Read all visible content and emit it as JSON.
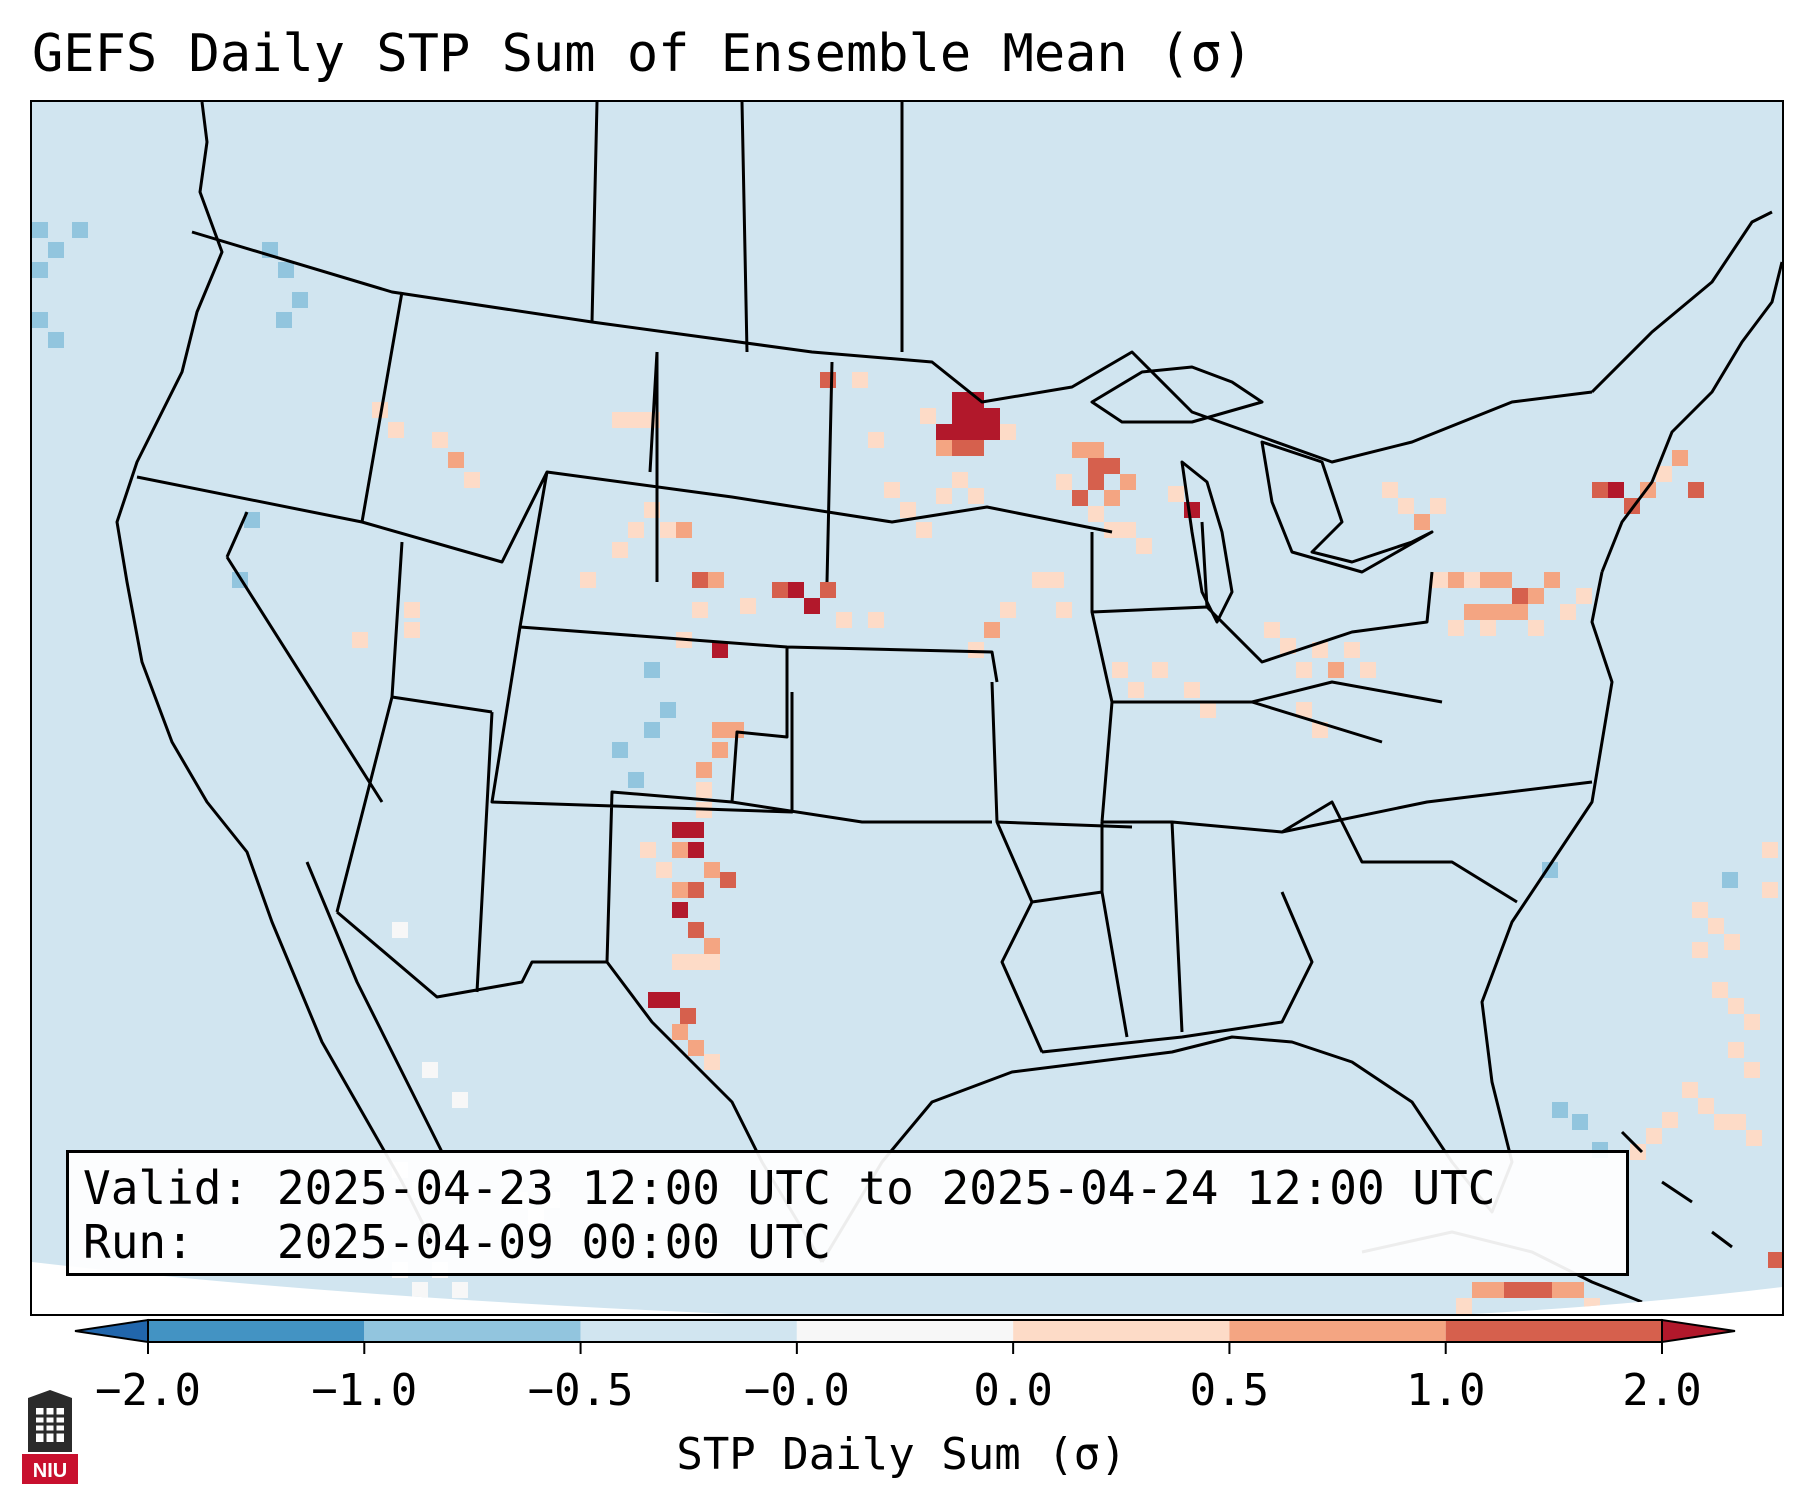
{
  "title": "GEFS Daily STP Sum of Ensemble Mean (σ)",
  "info": {
    "valid_label": "Valid:",
    "valid_value": "2025-04-23 12:00 UTC to 2025-04-24 12:00 UTC",
    "run_label": "Run:",
    "run_value": "2025-04-09 00:00 UTC"
  },
  "colorbar": {
    "label": "STP Daily Sum (σ)",
    "ticks": [
      "−2.0",
      "−1.0",
      "−0.5",
      "−0.0",
      "0.0",
      "0.5",
      "1.0",
      "2.0"
    ],
    "bins": [
      {
        "range": "< -2.0",
        "color": "#2166ac"
      },
      {
        "range": "-2.0 to -1.0",
        "color": "#4393c3"
      },
      {
        "range": "-1.0 to -0.5",
        "color": "#92c5de"
      },
      {
        "range": "-0.5 to -0.0",
        "color": "#d1e5f0"
      },
      {
        "range": "-0.0 to 0.0",
        "color": "#f7f7f7"
      },
      {
        "range": "0.0 to 0.5",
        "color": "#fddbc7"
      },
      {
        "range": "0.5 to 1.0",
        "color": "#f4a582"
      },
      {
        "range": "1.0 to 2.0",
        "color": "#d6604d"
      },
      {
        "range": "> 2.0",
        "color": "#b2182b"
      }
    ]
  },
  "logo_text": "NIU"
}
